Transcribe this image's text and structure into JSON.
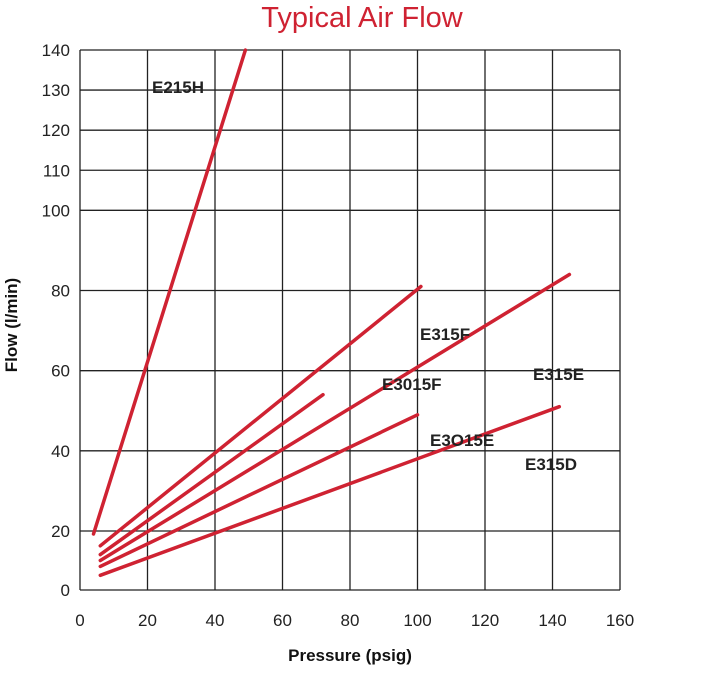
{
  "chart_data": {
    "type": "line",
    "title": "Typical Air Flow",
    "xlabel": "Pressure (psig)",
    "ylabel": "Flow (l/min)",
    "xlim": [
      0,
      160
    ],
    "ylim": [
      0,
      140
    ],
    "xticks": [
      0,
      20,
      40,
      60,
      80,
      100,
      120,
      140,
      160
    ],
    "yticks": [
      0,
      20,
      40,
      60,
      80,
      100,
      110,
      120,
      130,
      140
    ],
    "grid": true,
    "line_color": "#cf2232",
    "series": [
      {
        "name": "E215H",
        "x": [
          4,
          49
        ],
        "y": [
          19,
          140
        ]
      },
      {
        "name": "E315F",
        "x": [
          6,
          101
        ],
        "y": [
          15,
          81
        ]
      },
      {
        "name": "E3015F",
        "x": [
          6,
          72
        ],
        "y": [
          12,
          54
        ]
      },
      {
        "name": "E315E",
        "x": [
          6,
          145
        ],
        "y": [
          10,
          84
        ]
      },
      {
        "name": "E3O15E",
        "x": [
          6,
          100
        ],
        "y": [
          8,
          49
        ]
      },
      {
        "name": "E315D",
        "x": [
          6,
          142
        ],
        "y": [
          5,
          51
        ]
      }
    ]
  }
}
